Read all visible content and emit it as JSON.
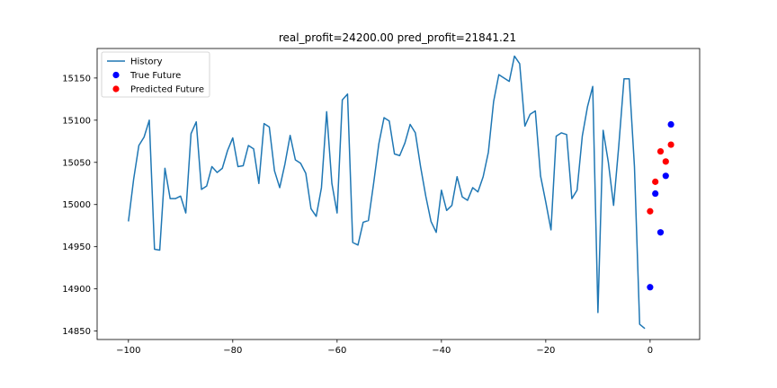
{
  "chart_data": {
    "type": "line",
    "title": "real_profit=24200.00 pred_profit=21841.21",
    "xlabel": "",
    "ylabel": "",
    "xlim": [
      -106,
      9.5
    ],
    "ylim": [
      14840,
      15185
    ],
    "xticks": [
      -100,
      -80,
      -60,
      -40,
      -20,
      0
    ],
    "xtick_labels": [
      "−100",
      "−80",
      "−60",
      "−40",
      "−20",
      "0"
    ],
    "yticks": [
      14850,
      14900,
      14950,
      15000,
      15050,
      15100,
      15150
    ],
    "yticks_labels": [
      "14850",
      "14900",
      "14950",
      "15000",
      "15050",
      "15100",
      "15150"
    ],
    "grid": false,
    "legend_position": "top-left",
    "series": [
      {
        "name": "History",
        "type": "line",
        "color": "#1f77b4",
        "x": [
          -100,
          -99,
          -98,
          -97,
          -96,
          -95,
          -94,
          -93,
          -92,
          -91,
          -90,
          -89,
          -88,
          -87,
          -86,
          -85,
          -84,
          -83,
          -82,
          -81,
          -80,
          -79,
          -78,
          -77,
          -76,
          -75,
          -74,
          -73,
          -72,
          -71,
          -70,
          -69,
          -68,
          -67,
          -66,
          -65,
          -64,
          -63,
          -62,
          -61,
          -60,
          -59,
          -58,
          -57,
          -56,
          -55,
          -54,
          -53,
          -52,
          -51,
          -50,
          -49,
          -48,
          -47,
          -46,
          -45,
          -44,
          -43,
          -42,
          -41,
          -40,
          -39,
          -38,
          -37,
          -36,
          -35,
          -34,
          -33,
          -32,
          -31,
          -30,
          -29,
          -28,
          -27,
          -26,
          -25,
          -24,
          -23,
          -22,
          -21,
          -20,
          -19,
          -18,
          -17,
          -16,
          -15,
          -14,
          -13,
          -12,
          -11,
          -10,
          -9,
          -8,
          -7,
          -6,
          -5,
          -4,
          -3,
          -2,
          -1
        ],
        "y": [
          14980,
          15030,
          15070,
          15080,
          15100,
          14947,
          14946,
          15043,
          15007,
          15007,
          15010,
          14990,
          15084,
          15098,
          15018,
          15022,
          15045,
          15038,
          15043,
          15064,
          15079,
          15045,
          15046,
          15070,
          15066,
          15025,
          15096,
          15092,
          15040,
          15020,
          15048,
          15082,
          15053,
          15049,
          15037,
          14995,
          14986,
          15020,
          15110,
          15025,
          14990,
          15124,
          15131,
          14955,
          14952,
          14979,
          14981,
          15025,
          15072,
          15103,
          15099,
          15060,
          15058,
          15073,
          15095,
          15085,
          15045,
          15010,
          14980,
          14967,
          15017,
          14993,
          14999,
          15033,
          15009,
          15005,
          15020,
          15015,
          15033,
          15062,
          15122,
          15154,
          15150,
          15146,
          15176,
          15167,
          15093,
          15107,
          15111,
          15034,
          15003,
          14970,
          15081,
          15085,
          15083,
          15007,
          15017,
          15081,
          15116,
          15140,
          14872,
          15088,
          15050,
          14999,
          15070,
          15149,
          15149,
          15045,
          14858,
          14853
        ]
      },
      {
        "name": "True Future",
        "type": "scatter",
        "color": "#0000ff",
        "x": [
          0,
          1,
          2,
          3,
          4
        ],
        "y": [
          14902,
          15013,
          14967,
          15034,
          15095
        ]
      },
      {
        "name": "Predicted Future",
        "type": "scatter",
        "color": "#ff0000",
        "x": [
          0,
          1,
          2,
          3,
          4
        ],
        "y": [
          14992,
          15027,
          15063,
          15051,
          15071
        ]
      }
    ]
  }
}
